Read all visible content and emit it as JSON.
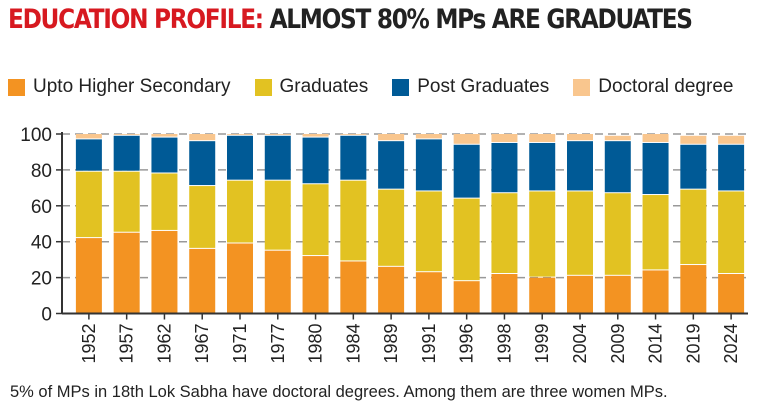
{
  "title": {
    "highlight": "EDUCATION PROFILE:",
    "rest": " ALMOST 80% MPs ARE GRADUATES"
  },
  "footnote": "5% of MPs in 18th Lok Sabha have doctoral degrees. Among them are three women MPs.",
  "chart_data": {
    "type": "bar",
    "stacked": true,
    "categories": [
      "1952",
      "1957",
      "1962",
      "1967",
      "1971",
      "1977",
      "1980",
      "1984",
      "1989",
      "1991",
      "1996",
      "1998",
      "1999",
      "2004",
      "2009",
      "2014",
      "2019",
      "2024"
    ],
    "series": [
      {
        "name": "Upto Higher Secondary",
        "color": "#f39322",
        "values": [
          42,
          45,
          46,
          36,
          39,
          35,
          32,
          29,
          26,
          23,
          18,
          22,
          20,
          21,
          21,
          24,
          27,
          22
        ]
      },
      {
        "name": "Graduates",
        "color": "#e2c222",
        "values": [
          37,
          34,
          32,
          35,
          35,
          39,
          40,
          45,
          43,
          45,
          46,
          45,
          48,
          47,
          46,
          42,
          42,
          46
        ]
      },
      {
        "name": "Post Graduates",
        "color": "#005a96",
        "values": [
          18,
          20,
          20,
          25,
          25,
          25,
          26,
          25,
          27,
          29,
          30,
          28,
          27,
          28,
          29,
          29,
          25,
          26
        ]
      },
      {
        "name": "Doctoral degree",
        "color": "#f9c68e",
        "values": [
          3,
          1,
          2,
          4,
          1,
          1,
          2,
          1,
          4,
          3,
          6,
          5,
          5,
          4,
          3,
          5,
          5,
          5
        ]
      }
    ],
    "yticks": [
      "0",
      "20",
      "40",
      "60",
      "80",
      "100"
    ],
    "ylim": [
      0,
      100
    ],
    "grid": true,
    "legend": "top"
  }
}
